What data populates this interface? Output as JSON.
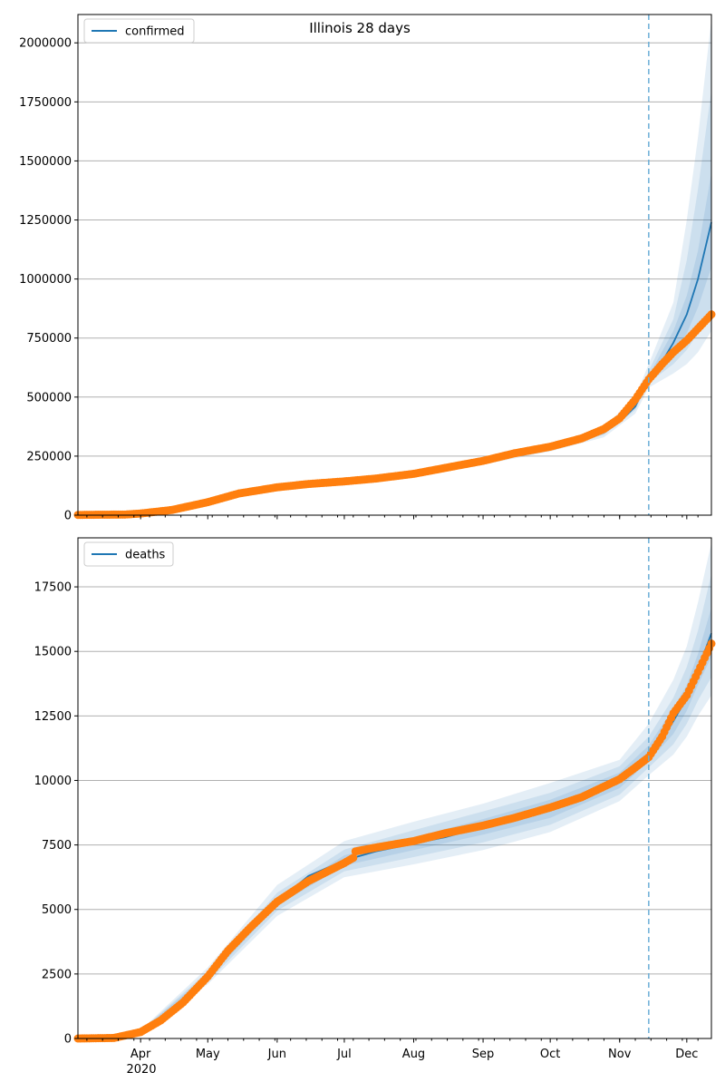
{
  "figure": {
    "title": "Illinois 28 days"
  },
  "colors": {
    "model_line": "#1f77b4",
    "band": "#1f77b4",
    "observed": "#ff7f0e",
    "grid": "#b0b0b0",
    "forecast_start_line": "#6baed6"
  },
  "x_axis": {
    "month_ticks": [
      "Apr",
      "May",
      "Jun",
      "Jul",
      "Aug",
      "Sep",
      "Oct",
      "Nov",
      "Dec"
    ],
    "month_dates": [
      "2020-04-01",
      "2020-05-01",
      "2020-06-01",
      "2020-07-01",
      "2020-08-01",
      "2020-09-01",
      "2020-10-01",
      "2020-11-01",
      "2020-12-01"
    ],
    "year_label": "2020",
    "range": [
      "2020-03-04",
      "2020-12-12"
    ],
    "forecast_start": "2020-11-14"
  },
  "chart_data": [
    {
      "type": "line",
      "title": "Illinois 28 days",
      "legend": {
        "label": "confirmed",
        "placement": "top-left"
      },
      "ylabel": "",
      "ylim": [
        0,
        2120000
      ],
      "yticks": [
        0,
        250000,
        500000,
        750000,
        1000000,
        1250000,
        1500000,
        1750000,
        2000000
      ],
      "ytick_labels": [
        "0",
        "250000",
        "500000",
        "750000",
        "1000000",
        "1250000",
        "1500000",
        "1750000",
        "2000000"
      ],
      "grid": "horizontal",
      "model": {
        "name": "confirmed",
        "x": [
          "2020-03-04",
          "2020-03-15",
          "2020-04-01",
          "2020-04-15",
          "2020-05-01",
          "2020-05-15",
          "2020-06-01",
          "2020-06-15",
          "2020-07-01",
          "2020-07-15",
          "2020-08-01",
          "2020-08-15",
          "2020-09-01",
          "2020-09-15",
          "2020-10-01",
          "2020-10-15",
          "2020-10-25",
          "2020-11-01",
          "2020-11-08",
          "2020-11-14",
          "2020-11-20",
          "2020-11-25",
          "2020-12-01",
          "2020-12-06",
          "2020-12-12"
        ],
        "y": [
          3000,
          5000,
          12000,
          30000,
          60000,
          90000,
          115000,
          128000,
          140000,
          152000,
          172000,
          195000,
          225000,
          255000,
          285000,
          315000,
          350000,
          395000,
          460000,
          580000,
          650000,
          730000,
          850000,
          1000000,
          1240000
        ],
        "bands": [
          {
            "x": [
              "2020-03-04",
              "2020-04-01",
              "2020-05-01",
              "2020-06-01",
              "2020-07-01",
              "2020-08-01",
              "2020-09-01",
              "2020-10-01",
              "2020-10-25",
              "2020-11-08",
              "2020-11-14",
              "2020-11-25",
              "2020-12-01",
              "2020-12-06",
              "2020-12-12"
            ],
            "lower": [
              2500,
              10000,
              56000,
              109000,
              133000,
              164000,
              214000,
              270000,
              330000,
              430000,
              540000,
              600000,
              640000,
              690000,
              780000
            ],
            "upper": [
              3500,
              14000,
              64000,
              121000,
              147000,
              180000,
              236000,
              300000,
              375000,
              500000,
              640000,
              900000,
              1250000,
              1600000,
              2100000
            ]
          },
          {
            "x": [
              "2020-03-04",
              "2020-04-01",
              "2020-05-01",
              "2020-06-01",
              "2020-07-01",
              "2020-08-01",
              "2020-09-01",
              "2020-10-01",
              "2020-10-25",
              "2020-11-08",
              "2020-11-14",
              "2020-11-25",
              "2020-12-01",
              "2020-12-06",
              "2020-12-12"
            ],
            "lower": [
              2700,
              11000,
              58000,
              112000,
              136000,
              168000,
              219000,
              277000,
              340000,
              445000,
              560000,
              640000,
              700000,
              770000,
              880000
            ],
            "upper": [
              3300,
              13000,
              62000,
              118000,
              144000,
              176000,
              231000,
              293000,
              362000,
              480000,
              610000,
              830000,
              1080000,
              1380000,
              1800000
            ]
          },
          {
            "x": [
              "2020-03-04",
              "2020-04-01",
              "2020-05-01",
              "2020-06-01",
              "2020-07-01",
              "2020-08-01",
              "2020-09-01",
              "2020-10-01",
              "2020-10-25",
              "2020-11-08",
              "2020-11-14",
              "2020-11-25",
              "2020-12-01",
              "2020-12-06",
              "2020-12-12"
            ],
            "lower": [
              2900,
              11600,
              59000,
              114000,
              138000,
              170000,
              222000,
              281000,
              345000,
              452000,
              570000,
              680000,
              770000,
              880000,
              1050000
            ],
            "upper": [
              3100,
              12400,
              61000,
              116000,
              142000,
              174000,
              228000,
              289000,
              355000,
              468000,
              590000,
              780000,
              930000,
              1120000,
              1450000
            ]
          }
        ]
      },
      "observed": {
        "x": [
          "2020-03-04",
          "2020-03-15",
          "2020-03-25",
          "2020-04-01",
          "2020-04-15",
          "2020-05-01",
          "2020-05-15",
          "2020-06-01",
          "2020-06-15",
          "2020-07-01",
          "2020-07-15",
          "2020-08-01",
          "2020-08-15",
          "2020-09-01",
          "2020-09-15",
          "2020-10-01",
          "2020-10-15",
          "2020-10-25",
          "2020-11-01",
          "2020-11-08",
          "2020-11-14",
          "2020-11-20",
          "2020-11-25",
          "2020-12-01",
          "2020-12-06",
          "2020-12-12"
        ],
        "y": [
          1000,
          2000,
          2500,
          7000,
          22000,
          55000,
          92000,
          118000,
          132000,
          143000,
          155000,
          175000,
          200000,
          230000,
          262000,
          290000,
          325000,
          365000,
          410000,
          490000,
          575000,
          640000,
          690000,
          740000,
          790000,
          850000
        ]
      }
    },
    {
      "type": "line",
      "legend": {
        "label": "deaths",
        "placement": "top-left"
      },
      "ylabel": "",
      "ylim": [
        0,
        19400
      ],
      "yticks": [
        0,
        2500,
        5000,
        7500,
        10000,
        12500,
        15000,
        17500
      ],
      "ytick_labels": [
        "0",
        "2500",
        "5000",
        "7500",
        "10000",
        "12500",
        "15000",
        "17500"
      ],
      "grid": "horizontal",
      "model": {
        "name": "deaths",
        "x": [
          "2020-03-04",
          "2020-03-20",
          "2020-04-01",
          "2020-04-15",
          "2020-05-01",
          "2020-05-15",
          "2020-06-01",
          "2020-06-15",
          "2020-07-01",
          "2020-07-15",
          "2020-08-01",
          "2020-08-15",
          "2020-09-01",
          "2020-09-15",
          "2020-10-01",
          "2020-10-15",
          "2020-11-01",
          "2020-11-08",
          "2020-11-14",
          "2020-11-20",
          "2020-11-25",
          "2020-12-01",
          "2020-12-06",
          "2020-12-12"
        ],
        "y": [
          0,
          20,
          250,
          1000,
          2400,
          3800,
          5300,
          6300,
          6900,
          7250,
          7550,
          7800,
          8200,
          8500,
          8900,
          9300,
          10000,
          10500,
          11000,
          11600,
          12300,
          13200,
          14300,
          15700
        ],
        "bands": [
          {
            "x": [
              "2020-03-04",
              "2020-04-01",
              "2020-05-01",
              "2020-06-01",
              "2020-07-01",
              "2020-08-01",
              "2020-09-01",
              "2020-10-01",
              "2020-11-01",
              "2020-11-14",
              "2020-11-25",
              "2020-12-01",
              "2020-12-06",
              "2020-12-12"
            ],
            "lower": [
              0,
              180,
              2100,
              4750,
              6250,
              6750,
              7300,
              8000,
              9200,
              10200,
              11000,
              11700,
              12500,
              13300
            ],
            "upper": [
              0,
              320,
              2750,
              5950,
              7650,
              8400,
              9100,
              9900,
              10800,
              12200,
              13900,
              15200,
              16900,
              19200
            ]
          },
          {
            "x": [
              "2020-03-04",
              "2020-04-01",
              "2020-05-01",
              "2020-06-01",
              "2020-07-01",
              "2020-08-01",
              "2020-09-01",
              "2020-10-01",
              "2020-11-01",
              "2020-11-14",
              "2020-11-25",
              "2020-12-01",
              "2020-12-06",
              "2020-12-12"
            ],
            "lower": [
              0,
              200,
              2200,
              4950,
              6480,
              7030,
              7600,
              8280,
              9450,
              10500,
              11400,
              12200,
              13100,
              14000
            ],
            "upper": [
              0,
              300,
              2600,
              5650,
              7320,
              8070,
              8800,
              9520,
              10550,
              11700,
              13200,
              14400,
              15800,
              18000
            ]
          },
          {
            "x": [
              "2020-03-04",
              "2020-04-01",
              "2020-05-01",
              "2020-06-01",
              "2020-07-01",
              "2020-08-01",
              "2020-09-01",
              "2020-10-01",
              "2020-11-01",
              "2020-11-14",
              "2020-11-25",
              "2020-12-01",
              "2020-12-06",
              "2020-12-12"
            ],
            "lower": [
              0,
              220,
              2300,
              5150,
              6700,
              7300,
              7900,
              8550,
              9700,
              10750,
              11800,
              12700,
              13700,
              14800
            ],
            "upper": [
              0,
              280,
              2500,
              5450,
              7100,
              7800,
              8500,
              9250,
              10300,
              11350,
              12800,
              13700,
              14900,
              16700
            ]
          }
        ]
      },
      "observed": {
        "x": [
          "2020-03-04",
          "2020-03-20",
          "2020-04-01",
          "2020-04-10",
          "2020-04-20",
          "2020-05-01",
          "2020-05-10",
          "2020-05-20",
          "2020-06-01",
          "2020-06-15",
          "2020-07-01",
          "2020-07-05",
          "2020-07-06",
          "2020-07-15",
          "2020-08-01",
          "2020-08-15",
          "2020-09-01",
          "2020-09-15",
          "2020-10-01",
          "2020-10-15",
          "2020-11-01",
          "2020-11-08",
          "2020-11-14",
          "2020-11-20",
          "2020-11-25",
          "2020-12-01",
          "2020-12-06",
          "2020-12-12"
        ],
        "y": [
          0,
          20,
          250,
          700,
          1400,
          2400,
          3400,
          4300,
          5300,
          6100,
          6800,
          7000,
          7250,
          7400,
          7650,
          7950,
          8250,
          8550,
          8950,
          9350,
          10050,
          10500,
          10900,
          11700,
          12600,
          13300,
          14200,
          15300
        ]
      }
    }
  ]
}
